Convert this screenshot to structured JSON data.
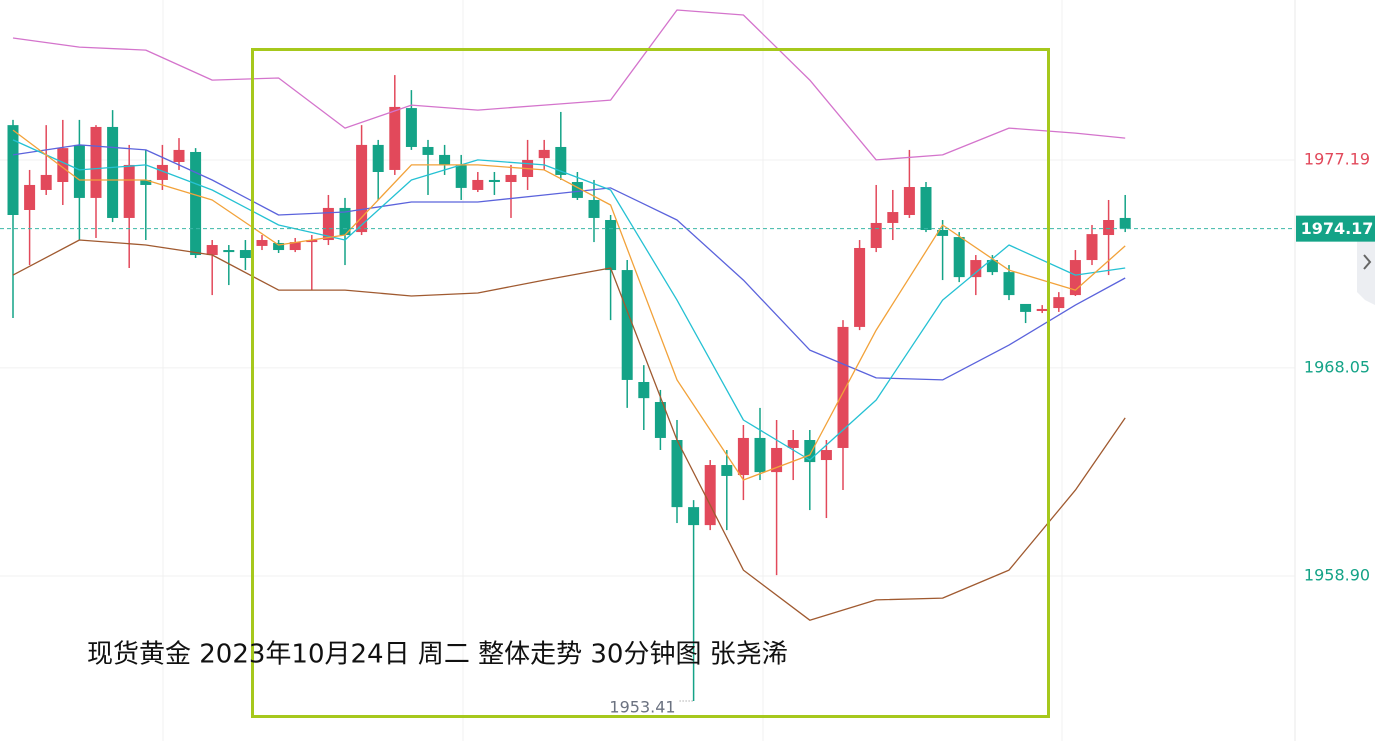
{
  "chart_data": {
    "type": "candlestick",
    "title": "现货黄金 2023年10月24日 周二 整体走势 30分钟图  张尧浠",
    "open": [
      1978.72,
      1974.99,
      1975.87,
      1976.22,
      1977.85,
      1975.52,
      1978.64,
      1974.64,
      1976.31,
      1976.31,
      1977.1,
      1977.54,
      1973.01,
      1973.23,
      1973.23,
      1973.41,
      1973.54,
      1973.23,
      1973.58,
      1973.67,
      1975.08,
      1974.02,
      1977.85,
      1976.75,
      1979.47,
      1977.76,
      1977.41,
      1976.97,
      1975.87,
      1976.31,
      1976.22,
      1976.44,
      1977.27,
      1977.76,
      1976.22,
      1975.43,
      1974.55,
      1972.35,
      1967.43,
      1966.55,
      1964.88,
      1961.93,
      1961.14,
      1963.78,
      1963.34,
      1964.97,
      1963.47,
      1964.53,
      1964.88,
      1964.0,
      1964.53,
      1969.85,
      1973.32,
      1974.42,
      1974.77,
      1976.0,
      1974.11,
      1973.8,
      1972.04,
      1972.79,
      1972.26,
      1970.86,
      1970.55,
      1970.68,
      1971.25,
      1972.79,
      1973.89,
      1974.64
    ],
    "close": [
      1974.77,
      1976.09,
      1976.53,
      1977.71,
      1975.52,
      1978.64,
      1974.64,
      1976.97,
      1976.09,
      1976.97,
      1977.63,
      1973.01,
      1973.45,
      1973.14,
      1972.88,
      1973.67,
      1973.23,
      1973.58,
      1973.67,
      1975.08,
      1973.89,
      1977.85,
      1976.66,
      1979.52,
      1977.76,
      1977.41,
      1976.97,
      1975.96,
      1976.31,
      1976.22,
      1976.53,
      1977.19,
      1977.63,
      1976.53,
      1975.52,
      1974.64,
      1972.35,
      1967.52,
      1966.72,
      1964.97,
      1961.93,
      1961.14,
      1963.78,
      1963.3,
      1964.97,
      1963.47,
      1964.53,
      1964.88,
      1963.91,
      1964.44,
      1969.85,
      1973.32,
      1974.42,
      1974.9,
      1976.0,
      1974.11,
      1973.85,
      1972.04,
      1972.79,
      1972.26,
      1971.25,
      1970.51,
      1970.64,
      1971.16,
      1972.79,
      1973.93,
      1974.55,
      1974.17
    ],
    "high": [
      1978.95,
      1976.75,
      1978.72,
      1978.95,
      1978.95,
      1978.72,
      1979.38,
      1977.85,
      1977.63,
      1977.85,
      1978.15,
      1977.71,
      1973.67,
      1973.45,
      1973.67,
      1973.89,
      1973.67,
      1973.76,
      1973.89,
      1975.65,
      1975.52,
      1978.72,
      1978.07,
      1980.92,
      1980.26,
      1978.07,
      1977.85,
      1977.41,
      1976.66,
      1976.66,
      1976.97,
      1978.07,
      1978.07,
      1979.3,
      1976.66,
      1976.31,
      1974.77,
      1972.79,
      1968.17,
      1967.08,
      1965.76,
      1962.24,
      1964.0,
      1964.44,
      1965.54,
      1966.29,
      1965.76,
      1965.32,
      1965.32,
      1964.88,
      1970.15,
      1973.67,
      1976.09,
      1975.87,
      1977.63,
      1976.22,
      1974.55,
      1974.02,
      1973.01,
      1973.01,
      1972.57,
      1970.81,
      1970.81,
      1971.38,
      1973.23,
      1974.33,
      1975.43,
      1975.65
    ],
    "low": [
      1970.24,
      1972.57,
      1975.65,
      1975.21,
      1973.67,
      1973.76,
      1974.46,
      1972.44,
      1973.67,
      1975.87,
      1976.75,
      1972.88,
      1971.25,
      1971.69,
      1972.35,
      1973.23,
      1973.1,
      1973.14,
      1971.47,
      1973.45,
      1972.57,
      1973.89,
      1975.43,
      1976.53,
      1977.63,
      1975.65,
      1976.53,
      1975.43,
      1975.78,
      1975.65,
      1974.64,
      1975.87,
      1976.75,
      1976.31,
      1975.43,
      1973.58,
      1970.15,
      1966.29,
      1965.32,
      1964.44,
      1961.23,
      1953.41,
      1960.92,
      1960.92,
      1962.24,
      1963.12,
      1958.94,
      1963.12,
      1961.8,
      1961.45,
      1962.68,
      1969.71,
      1973.14,
      1973.67,
      1974.64,
      1974.02,
      1971.91,
      1971.82,
      1971.25,
      1972.13,
      1971.03,
      1970.02,
      1970.46,
      1970.51,
      1971.21,
      1972.57,
      1972.13,
      1974.02
    ],
    "up_color": "#e2495b",
    "down_color": "#14a387",
    "series": [
      {
        "color": "#d474cc",
        "x": [
          0,
          4,
          8,
          12,
          16,
          20,
          24,
          28,
          32,
          36,
          40,
          44,
          48,
          52,
          56,
          60,
          64,
          67
        ],
        "values": [
          1982.55,
          1982.15,
          1982.02,
          1980.7,
          1980.79,
          1978.59,
          1979.6,
          1979.38,
          1979.6,
          1979.82,
          1983.78,
          1983.56,
          1980.7,
          1977.19,
          1977.41,
          1978.59,
          1978.37,
          1978.15
        ]
      },
      {
        "color": "#a05a30",
        "x": [
          0,
          4,
          8,
          12,
          16,
          20,
          24,
          28,
          32,
          36,
          40,
          44,
          48,
          52,
          56,
          60,
          64,
          67
        ],
        "values": [
          1972.13,
          1973.67,
          1973.45,
          1973.01,
          1971.47,
          1971.47,
          1971.21,
          1971.34,
          1971.91,
          1972.44,
          1964.88,
          1959.16,
          1956.96,
          1957.85,
          1957.93,
          1959.16,
          1962.68,
          1965.85
        ]
      },
      {
        "color": "#5b63dc",
        "x": [
          0,
          4,
          8,
          12,
          16,
          20,
          24,
          28,
          32,
          36,
          40,
          44,
          48,
          52,
          56,
          60,
          64,
          67
        ],
        "values": [
          1977.41,
          1977.85,
          1977.63,
          1976.31,
          1974.77,
          1974.9,
          1975.34,
          1975.34,
          1975.65,
          1975.96,
          1974.55,
          1971.91,
          1968.83,
          1967.61,
          1967.52,
          1969.05,
          1970.81,
          1972.0
        ]
      },
      {
        "color": "#25c1d3",
        "x": [
          0,
          4,
          8,
          12,
          16,
          20,
          24,
          28,
          32,
          36,
          40,
          44,
          48,
          52,
          56,
          60,
          64,
          67
        ],
        "values": [
          1978.07,
          1976.75,
          1976.97,
          1975.87,
          1974.33,
          1973.67,
          1976.31,
          1977.19,
          1976.97,
          1975.87,
          1971.03,
          1965.76,
          1964.0,
          1966.64,
          1971.03,
          1973.45,
          1972.13,
          1972.44
        ]
      },
      {
        "color": "#f2a23a",
        "x": [
          0,
          4,
          8,
          12,
          16,
          20,
          24,
          28,
          32,
          36,
          40,
          44,
          48,
          52,
          56,
          60,
          64,
          67
        ],
        "values": [
          1978.5,
          1976.31,
          1976.31,
          1975.43,
          1973.45,
          1973.89,
          1976.97,
          1976.97,
          1976.75,
          1975.21,
          1967.52,
          1963.12,
          1964.22,
          1969.71,
          1974.33,
          1972.35,
          1971.47,
          1973.41
        ]
      }
    ],
    "ylim": [
      1951.65,
      1984.22
    ],
    "yticks": [
      1977.19,
      1968.05,
      1958.9
    ],
    "ytick_labels": [
      "1977.19",
      "1968.05",
      "1958.90"
    ],
    "last_price": 1974.17,
    "low_index": 41,
    "grid": true
  }
}
